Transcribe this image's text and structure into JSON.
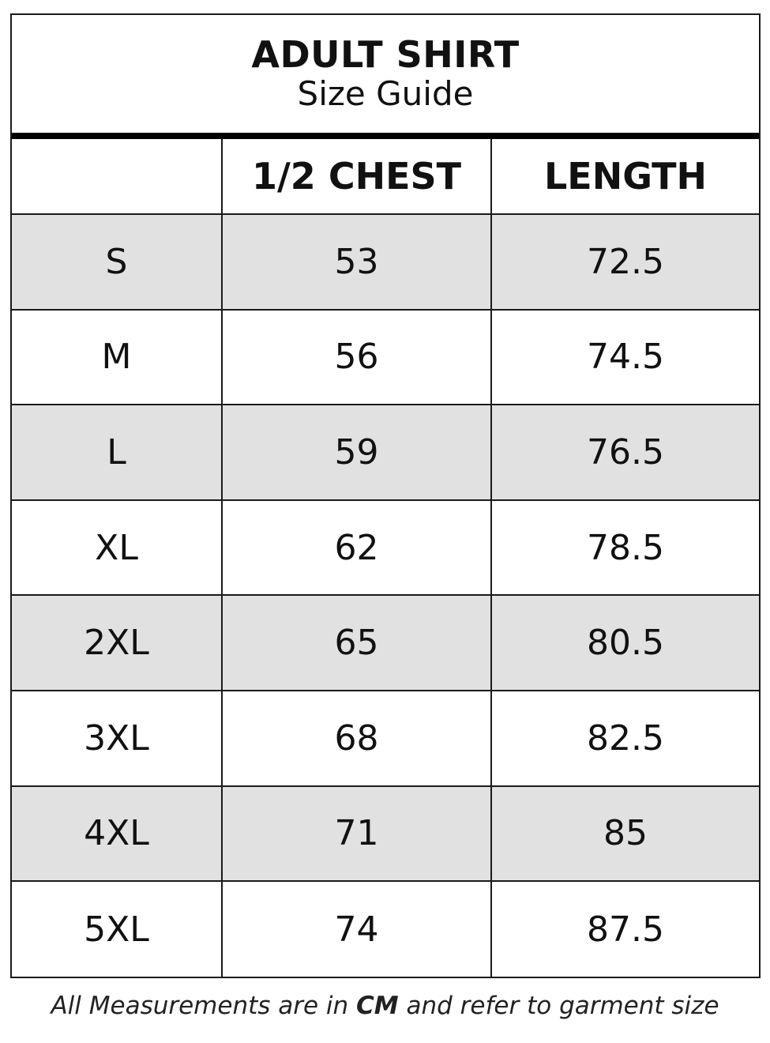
{
  "title": "ADULT SHIRT",
  "subtitle": "Size Guide",
  "columns": [
    "",
    "1/2 CHEST",
    "LENGTH"
  ],
  "rows": [
    [
      "S",
      "53",
      "72.5"
    ],
    [
      "M",
      "56",
      "74.5"
    ],
    [
      "L",
      "59",
      "76.5"
    ],
    [
      "XL",
      "62",
      "78.5"
    ],
    [
      "2XL",
      "65",
      "80.5"
    ],
    [
      "3XL",
      "68",
      "82.5"
    ],
    [
      "4XL",
      "71",
      "85"
    ],
    [
      "5XL",
      "74",
      "87.5"
    ]
  ],
  "footer": {
    "before": "All Measurements are in ",
    "unit": "CM",
    "after": " and refer to garment size"
  },
  "colors": {
    "stripe": "#e0e1e0",
    "border": "#1a1a1a"
  }
}
